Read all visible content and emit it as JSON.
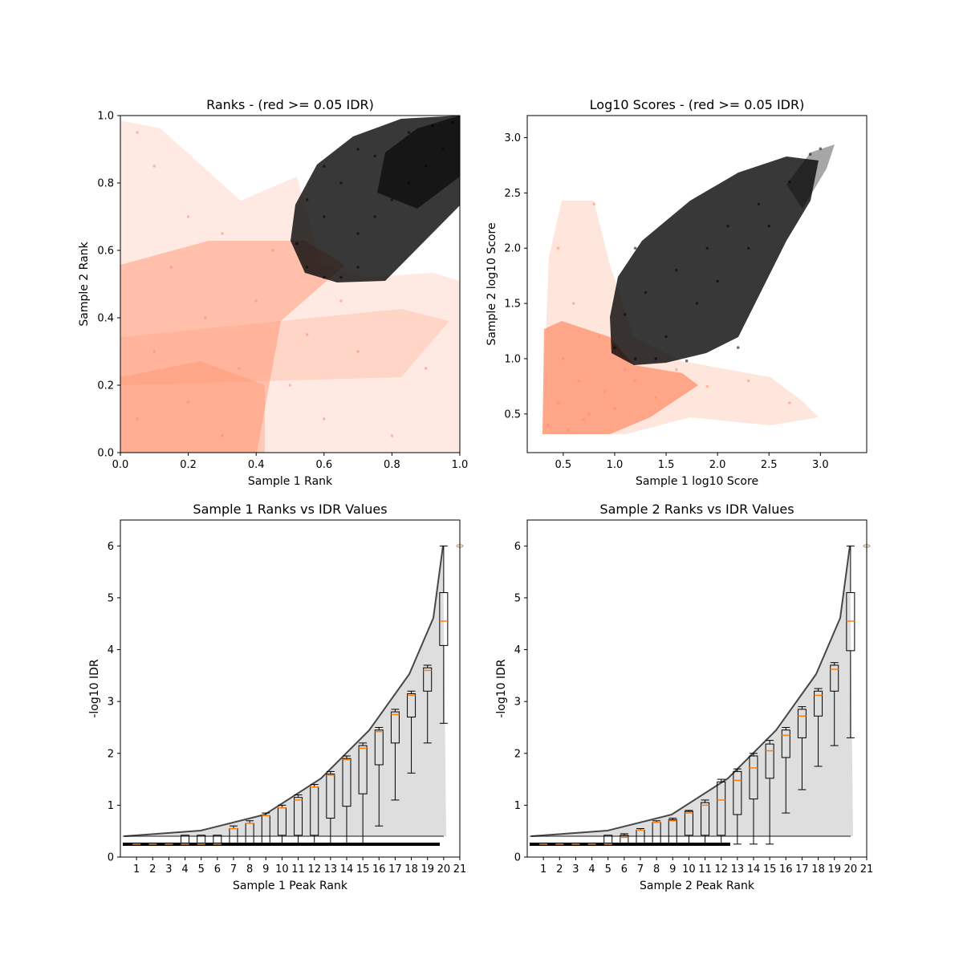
{
  "colors": {
    "pass": "#000000",
    "fail": "#ff8c66",
    "median": "#ff7f0e",
    "box_edge": "#000000",
    "axes": "#000000",
    "background": "#ffffff"
  },
  "chart_data": [
    {
      "type": "scatter",
      "title": "Ranks - (red >= 0.05 IDR)",
      "xlabel": "Sample 1 Rank",
      "ylabel": "Sample 2 Rank",
      "xlim": [
        0,
        1
      ],
      "ylim": [
        0,
        1
      ],
      "xticks": [
        0.0,
        0.2,
        0.4,
        0.6,
        0.8,
        1.0
      ],
      "yticks": [
        0.0,
        0.2,
        0.4,
        0.6,
        0.8,
        1.0
      ],
      "xtick_labels": [
        "0.0",
        "0.2",
        "0.4",
        "0.6",
        "0.8",
        "1.0"
      ],
      "ytick_labels": [
        "0.0",
        "0.2",
        "0.4",
        "0.6",
        "0.8",
        "1.0"
      ],
      "grid": false,
      "series": [
        {
          "color": "#ff8c66",
          "points": [
            [
              0.05,
              0.1
            ],
            [
              0.1,
              0.3
            ],
            [
              0.15,
              0.55
            ],
            [
              0.2,
              0.15
            ],
            [
              0.25,
              0.4
            ],
            [
              0.3,
              0.05
            ],
            [
              0.35,
              0.25
            ],
            [
              0.4,
              0.45
            ],
            [
              0.45,
              0.6
            ],
            [
              0.5,
              0.2
            ],
            [
              0.55,
              0.35
            ],
            [
              0.6,
              0.1
            ],
            [
              0.65,
              0.45
            ],
            [
              0.7,
              0.3
            ],
            [
              0.8,
              0.05
            ],
            [
              0.9,
              0.25
            ],
            [
              0.1,
              0.85
            ],
            [
              0.2,
              0.7
            ],
            [
              0.3,
              0.65
            ],
            [
              0.05,
              0.95
            ]
          ]
        },
        {
          "color": "#000000",
          "points": [
            [
              0.52,
              0.62
            ],
            [
              0.55,
              0.55
            ],
            [
              0.6,
              0.52
            ],
            [
              0.65,
              0.52
            ],
            [
              0.7,
              0.55
            ],
            [
              0.6,
              0.7
            ],
            [
              0.7,
              0.65
            ],
            [
              0.75,
              0.7
            ],
            [
              0.8,
              0.75
            ],
            [
              0.85,
              0.8
            ],
            [
              0.9,
              0.85
            ],
            [
              0.95,
              0.9
            ],
            [
              0.98,
              0.98
            ],
            [
              0.6,
              0.85
            ],
            [
              0.55,
              0.75
            ],
            [
              0.65,
              0.8
            ],
            [
              0.75,
              0.88
            ],
            [
              0.85,
              0.95
            ],
            [
              0.92,
              0.97
            ],
            [
              0.7,
              0.9
            ]
          ]
        }
      ]
    },
    {
      "type": "scatter",
      "title": "Log10 Scores - (red >= 0.05 IDR)",
      "xlabel": "Sample 1 log10 Score",
      "ylabel": "Sample 2 log10 Score",
      "xlim": [
        0.15,
        3.45
      ],
      "ylim": [
        0.15,
        3.2
      ],
      "xticks": [
        0.5,
        1.0,
        1.5,
        2.0,
        2.5,
        3.0
      ],
      "yticks": [
        0.5,
        1.0,
        1.5,
        2.0,
        2.5,
        3.0
      ],
      "xtick_labels": [
        "0.5",
        "1.0",
        "1.5",
        "2.0",
        "2.5",
        "3.0"
      ],
      "ytick_labels": [
        "0.5",
        "1.0",
        "1.5",
        "2.0",
        "2.5",
        "3.0"
      ],
      "grid": false,
      "series": [
        {
          "color": "#ff8c66",
          "points": [
            [
              0.35,
              0.4
            ],
            [
              0.45,
              0.6
            ],
            [
              0.55,
              0.35
            ],
            [
              0.65,
              0.8
            ],
            [
              0.75,
              0.5
            ],
            [
              0.85,
              1.2
            ],
            [
              0.5,
              1.0
            ],
            [
              0.6,
              1.5
            ],
            [
              0.7,
              0.45
            ],
            [
              0.9,
              0.7
            ],
            [
              1.0,
              0.55
            ],
            [
              1.2,
              0.8
            ],
            [
              1.4,
              0.65
            ],
            [
              1.6,
              0.9
            ],
            [
              1.9,
              0.75
            ],
            [
              2.3,
              0.8
            ],
            [
              2.7,
              0.6
            ],
            [
              0.45,
              2.0
            ],
            [
              0.8,
              2.4
            ],
            [
              1.1,
              0.9
            ]
          ]
        },
        {
          "color": "#000000",
          "points": [
            [
              1.0,
              1.1
            ],
            [
              1.1,
              1.4
            ],
            [
              1.2,
              1.0
            ],
            [
              1.3,
              1.6
            ],
            [
              1.5,
              1.2
            ],
            [
              1.6,
              1.8
            ],
            [
              1.8,
              1.5
            ],
            [
              1.9,
              2.0
            ],
            [
              2.0,
              1.7
            ],
            [
              2.1,
              2.2
            ],
            [
              2.3,
              2.0
            ],
            [
              2.4,
              2.4
            ],
            [
              2.5,
              2.2
            ],
            [
              2.7,
              2.6
            ],
            [
              2.9,
              2.85
            ],
            [
              3.0,
              2.9
            ],
            [
              1.4,
              1.0
            ],
            [
              1.7,
              0.98
            ],
            [
              2.2,
              1.1
            ],
            [
              1.2,
              2.0
            ]
          ]
        }
      ]
    },
    {
      "type": "box",
      "title": "Sample 1 Ranks vs IDR Values",
      "xlabel": "Sample 1 Peak Rank",
      "ylabel": "-log10 IDR",
      "xlim": [
        0,
        21
      ],
      "ylim": [
        0,
        6.5
      ],
      "xticks": [
        1,
        2,
        3,
        4,
        5,
        6,
        7,
        8,
        9,
        10,
        11,
        12,
        13,
        14,
        15,
        16,
        17,
        18,
        19,
        20,
        21
      ],
      "xtick_labels": [
        "1",
        "2",
        "3",
        "4",
        "5",
        "6",
        "7",
        "8",
        "9",
        "10",
        "11",
        "12",
        "13",
        "14",
        "15",
        "16",
        "17",
        "18",
        "19",
        "20",
        "21"
      ],
      "yticks": [
        0,
        1,
        2,
        3,
        4,
        5,
        6
      ],
      "ytick_labels": [
        "0",
        "1",
        "2",
        "3",
        "4",
        "5",
        "6"
      ],
      "grid": false,
      "boxes": [
        {
          "pos": 1,
          "whislo": 0.25,
          "q1": 0.25,
          "median": 0.25,
          "q3": 0.25,
          "whishi": 0.25
        },
        {
          "pos": 2,
          "whislo": 0.25,
          "q1": 0.25,
          "median": 0.25,
          "q3": 0.25,
          "whishi": 0.25
        },
        {
          "pos": 3,
          "whislo": 0.25,
          "q1": 0.25,
          "median": 0.25,
          "q3": 0.25,
          "whishi": 0.25
        },
        {
          "pos": 4,
          "whislo": 0.25,
          "q1": 0.25,
          "median": 0.25,
          "q3": 0.42,
          "whishi": 0.42
        },
        {
          "pos": 5,
          "whislo": 0.25,
          "q1": 0.25,
          "median": 0.25,
          "q3": 0.42,
          "whishi": 0.42
        },
        {
          "pos": 6,
          "whislo": 0.25,
          "q1": 0.25,
          "median": 0.25,
          "q3": 0.42,
          "whishi": 0.42
        },
        {
          "pos": 7,
          "whislo": 0.25,
          "q1": 0.25,
          "median": 0.55,
          "q3": 0.55,
          "whishi": 0.6
        },
        {
          "pos": 8,
          "whislo": 0.25,
          "q1": 0.25,
          "median": 0.65,
          "q3": 0.65,
          "whishi": 0.7
        },
        {
          "pos": 9,
          "whislo": 0.25,
          "q1": 0.25,
          "median": 0.8,
          "q3": 0.8,
          "whishi": 0.85
        },
        {
          "pos": 10,
          "whislo": 0.25,
          "q1": 0.42,
          "median": 0.95,
          "q3": 0.95,
          "whishi": 1.0
        },
        {
          "pos": 11,
          "whislo": 0.25,
          "q1": 0.42,
          "median": 1.1,
          "q3": 1.15,
          "whishi": 1.2
        },
        {
          "pos": 12,
          "whislo": 0.25,
          "q1": 0.42,
          "median": 1.35,
          "q3": 1.35,
          "whishi": 1.4
        },
        {
          "pos": 13,
          "whislo": 0.25,
          "q1": 0.75,
          "median": 1.58,
          "q3": 1.6,
          "whishi": 1.65
        },
        {
          "pos": 14,
          "whislo": 0.25,
          "q1": 0.98,
          "median": 1.88,
          "q3": 1.9,
          "whishi": 1.95
        },
        {
          "pos": 15,
          "whislo": 0.25,
          "q1": 1.22,
          "median": 2.1,
          "q3": 2.15,
          "whishi": 2.2
        },
        {
          "pos": 16,
          "whislo": 0.6,
          "q1": 1.78,
          "median": 2.42,
          "q3": 2.45,
          "whishi": 2.5
        },
        {
          "pos": 17,
          "whislo": 1.1,
          "q1": 2.2,
          "median": 2.75,
          "q3": 2.8,
          "whishi": 2.85
        },
        {
          "pos": 18,
          "whislo": 1.62,
          "q1": 2.7,
          "median": 3.12,
          "q3": 3.15,
          "whishi": 3.2
        },
        {
          "pos": 19,
          "whislo": 2.2,
          "q1": 3.2,
          "median": 3.6,
          "q3": 3.65,
          "whishi": 3.7
        },
        {
          "pos": 20,
          "whislo": 2.58,
          "q1": 4.08,
          "median": 4.55,
          "q3": 5.1,
          "whishi": 6.0
        }
      ],
      "outliers": [
        [
          21,
          6.0
        ]
      ]
    },
    {
      "type": "box",
      "title": "Sample 2 Ranks vs IDR Values",
      "xlabel": "Sample 2 Peak Rank",
      "ylabel": "-log10 IDR",
      "xlim": [
        0,
        21
      ],
      "ylim": [
        0,
        6.5
      ],
      "xticks": [
        1,
        2,
        3,
        4,
        5,
        6,
        7,
        8,
        9,
        10,
        11,
        12,
        13,
        14,
        15,
        16,
        17,
        18,
        19,
        20,
        21
      ],
      "xtick_labels": [
        "1",
        "2",
        "3",
        "4",
        "5",
        "6",
        "7",
        "8",
        "9",
        "10",
        "11",
        "12",
        "13",
        "14",
        "15",
        "16",
        "17",
        "18",
        "19",
        "20",
        "21"
      ],
      "yticks": [
        0,
        1,
        2,
        3,
        4,
        5,
        6
      ],
      "ytick_labels": [
        "0",
        "1",
        "2",
        "3",
        "4",
        "5",
        "6"
      ],
      "grid": false,
      "boxes": [
        {
          "pos": 1,
          "whislo": 0.25,
          "q1": 0.25,
          "median": 0.25,
          "q3": 0.25,
          "whishi": 0.25
        },
        {
          "pos": 2,
          "whislo": 0.25,
          "q1": 0.25,
          "median": 0.25,
          "q3": 0.25,
          "whishi": 0.25
        },
        {
          "pos": 3,
          "whislo": 0.25,
          "q1": 0.25,
          "median": 0.25,
          "q3": 0.25,
          "whishi": 0.25
        },
        {
          "pos": 4,
          "whislo": 0.25,
          "q1": 0.25,
          "median": 0.25,
          "q3": 0.25,
          "whishi": 0.25
        },
        {
          "pos": 5,
          "whislo": 0.25,
          "q1": 0.25,
          "median": 0.25,
          "q3": 0.42,
          "whishi": 0.42
        },
        {
          "pos": 6,
          "whislo": 0.25,
          "q1": 0.25,
          "median": 0.38,
          "q3": 0.42,
          "whishi": 0.45
        },
        {
          "pos": 7,
          "whislo": 0.25,
          "q1": 0.25,
          "median": 0.52,
          "q3": 0.52,
          "whishi": 0.55
        },
        {
          "pos": 8,
          "whislo": 0.25,
          "q1": 0.25,
          "median": 0.67,
          "q3": 0.67,
          "whishi": 0.7
        },
        {
          "pos": 9,
          "whislo": 0.25,
          "q1": 0.25,
          "median": 0.7,
          "q3": 0.72,
          "whishi": 0.75
        },
        {
          "pos": 10,
          "whislo": 0.25,
          "q1": 0.42,
          "median": 0.85,
          "q3": 0.88,
          "whishi": 0.9
        },
        {
          "pos": 11,
          "whislo": 0.25,
          "q1": 0.42,
          "median": 1.0,
          "q3": 1.05,
          "whishi": 1.1
        },
        {
          "pos": 12,
          "whislo": 0.25,
          "q1": 0.42,
          "median": 1.1,
          "q3": 1.45,
          "whishi": 1.5
        },
        {
          "pos": 13,
          "whislo": 0.25,
          "q1": 0.82,
          "median": 1.48,
          "q3": 1.65,
          "whishi": 1.7
        },
        {
          "pos": 14,
          "whislo": 0.25,
          "q1": 1.12,
          "median": 1.72,
          "q3": 1.95,
          "whishi": 2.0
        },
        {
          "pos": 15,
          "whislo": 0.25,
          "q1": 1.52,
          "median": 2.05,
          "q3": 2.18,
          "whishi": 2.25
        },
        {
          "pos": 16,
          "whislo": 0.85,
          "q1": 1.92,
          "median": 2.35,
          "q3": 2.45,
          "whishi": 2.5
        },
        {
          "pos": 17,
          "whislo": 1.3,
          "q1": 2.3,
          "median": 2.72,
          "q3": 2.85,
          "whishi": 2.9
        },
        {
          "pos": 18,
          "whislo": 1.75,
          "q1": 2.72,
          "median": 3.12,
          "q3": 3.2,
          "whishi": 3.25
        },
        {
          "pos": 19,
          "whislo": 2.15,
          "q1": 3.2,
          "median": 3.62,
          "q3": 3.7,
          "whishi": 3.75
        },
        {
          "pos": 20,
          "whislo": 2.3,
          "q1": 3.98,
          "median": 4.55,
          "q3": 5.1,
          "whishi": 6.0
        }
      ],
      "outliers": [
        [
          21,
          6.0
        ]
      ]
    }
  ]
}
